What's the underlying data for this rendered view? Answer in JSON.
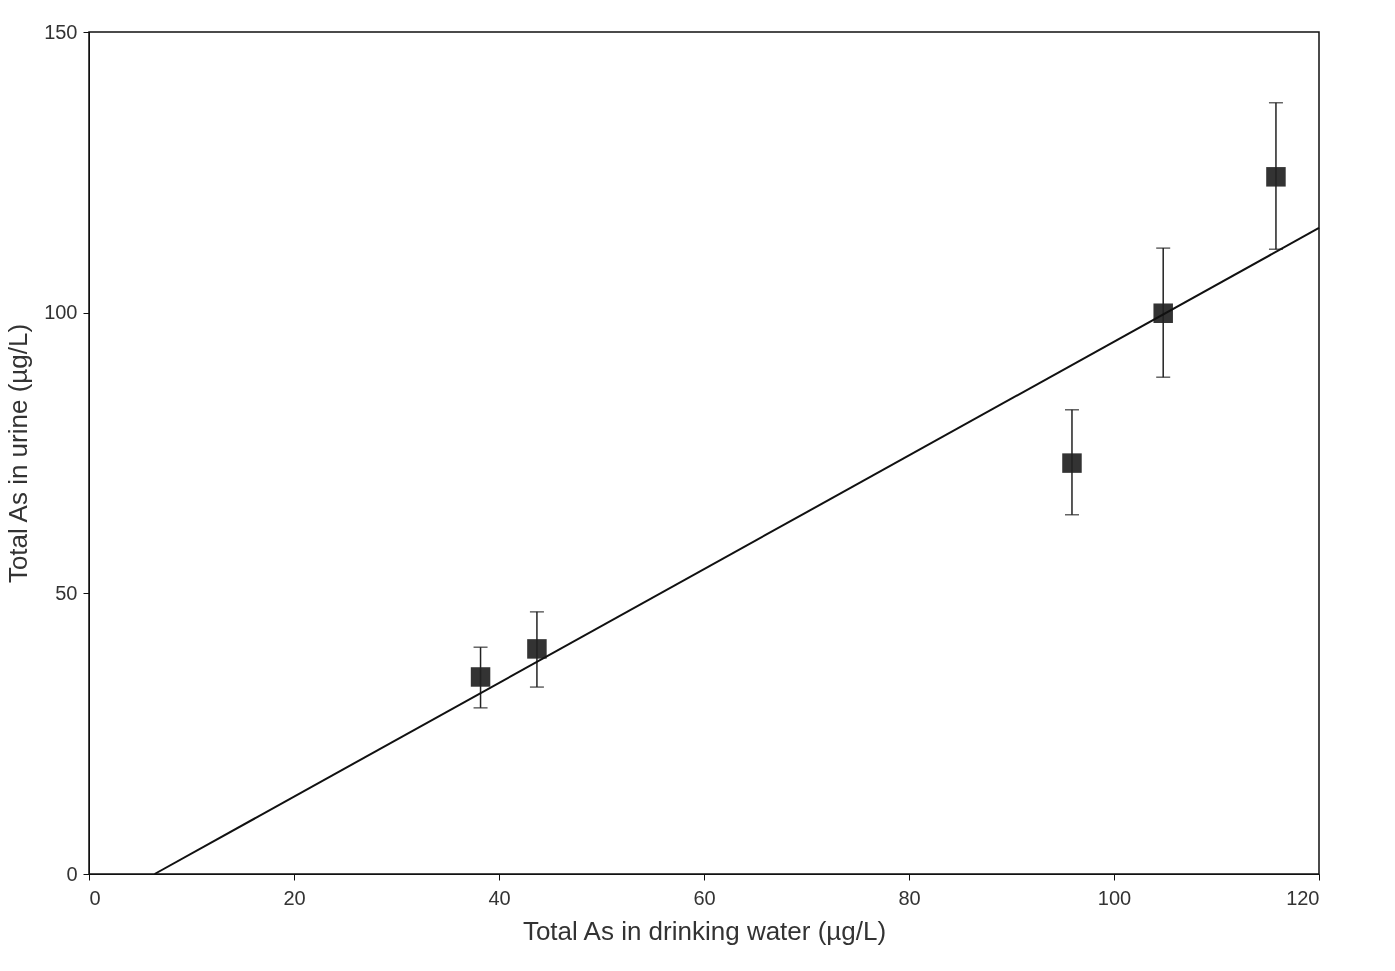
{
  "chart_data": {
    "type": "scatter",
    "xlabel": "Total As in drinking water (µg/L)",
    "ylabel": "Total As in urine (µg/L)",
    "xlim": [
      0,
      120
    ],
    "ylim": [
      0,
      150
    ],
    "xticks": [
      0,
      20,
      40,
      60,
      80,
      100,
      120
    ],
    "yticks": [
      0,
      50,
      100,
      150
    ],
    "grid": false,
    "series": [
      {
        "type": "scatter",
        "marker": "square",
        "color": "#333333",
        "x": [
          38.2,
          43.7,
          95.9,
          104.8,
          115.8
        ],
        "values": [
          35.1,
          40.1,
          73.2,
          99.9,
          124.2
        ],
        "errors": [
          [
            29.6,
            40.4
          ],
          [
            33.3,
            46.7
          ],
          [
            64.0,
            82.7
          ],
          [
            88.5,
            111.5
          ],
          [
            111.3,
            137.4
          ]
        ]
      },
      {
        "type": "line",
        "color": "#111111",
        "x": [
          6.4,
          120
        ],
        "values": [
          0,
          115.1
        ],
        "line_style": "solid",
        "marker": "none"
      }
    ]
  }
}
